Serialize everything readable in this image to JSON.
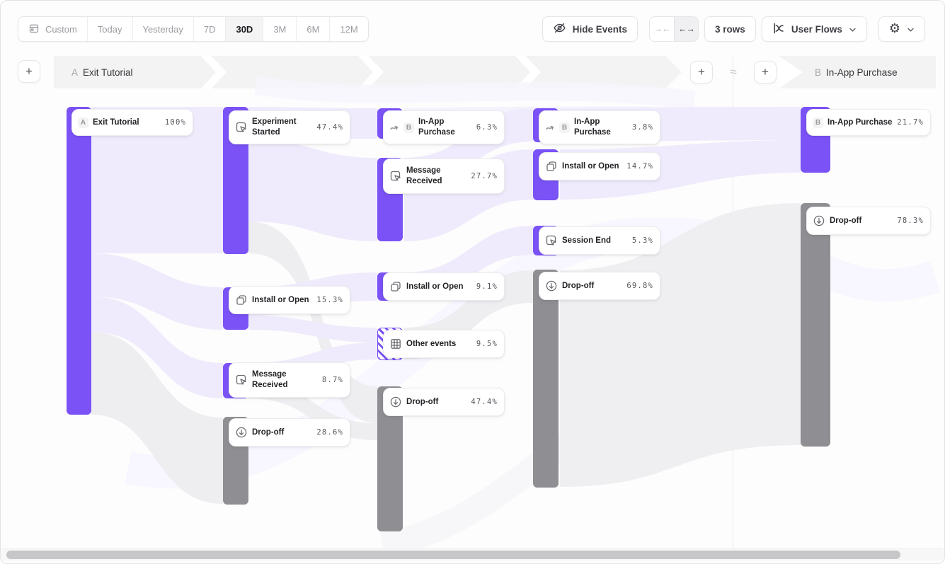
{
  "ui": {
    "plus": "+"
  },
  "colors": {
    "accent_purple": "#7A52F6",
    "ribbon_purple": "#EFEBFC",
    "node_gray": "#8F8F93",
    "ribbon_gray": "#EEEEF1",
    "band_gray": "#F3F3F4"
  },
  "toolbar": {
    "date_ranges": [
      "Custom",
      "Today",
      "Yesterday",
      "7D",
      "30D",
      "3M",
      "6M",
      "12M"
    ],
    "selected_range": "30D",
    "hide_events": "Hide Events",
    "collapse_glyph": "→←",
    "expand_glyph": "←→",
    "rows": "3 rows",
    "view": "User Flows",
    "gear_glyph": "⚙"
  },
  "sections": {
    "a": {
      "badge": "A",
      "label": "Exit Tutorial"
    },
    "b": {
      "badge": "B",
      "label": "In-App Purchase"
    },
    "connector": "≈"
  },
  "chart_data": {
    "type": "sankey",
    "description": "User flow from Exit Tutorial (section A) toward In-App Purchase (section B), 30D window",
    "nodes": [
      {
        "col": 0,
        "label": "Exit Tutorial",
        "value": "100%",
        "badge": "A",
        "icon": null,
        "kind": "purple",
        "bar": [
          93,
          150,
          35,
          435
        ],
        "card": [
          100,
          153,
          172,
          38
        ],
        "two": false
      },
      {
        "col": 1,
        "label": "Experiment Started",
        "value": "47.4%",
        "badge": null,
        "icon": "cursor-click-icon",
        "kind": "purple",
        "bar": [
          314,
          150,
          36,
          208
        ],
        "card": [
          322,
          155,
          172,
          48
        ],
        "two": true
      },
      {
        "col": 1,
        "label": "Install or Open",
        "value": "15.3%",
        "badge": null,
        "icon": "window-icon",
        "kind": "purple",
        "bar": [
          314,
          405,
          36,
          60
        ],
        "card": [
          322,
          403,
          172,
          40
        ],
        "two": false
      },
      {
        "col": 1,
        "label": "Message Received",
        "value": "8.7%",
        "badge": null,
        "icon": "cursor-click-icon",
        "kind": "purple",
        "bar": [
          314,
          512,
          36,
          50
        ],
        "card": [
          322,
          511,
          172,
          50
        ],
        "two": true
      },
      {
        "col": 1,
        "label": "Drop-off",
        "value": "28.6%",
        "badge": null,
        "icon": "arrow-down-circle-icon",
        "kind": "gray",
        "bar": [
          314,
          588,
          36,
          124
        ],
        "card": [
          322,
          590,
          172,
          40
        ],
        "two": false
      },
      {
        "col": 2,
        "label": "In-App Purchase",
        "value": "6.3%",
        "badge": "B",
        "icon": "jump-arrow-icon",
        "kind": "purple",
        "bar": [
          532,
          152,
          36,
          43
        ],
        "card": [
          540,
          155,
          172,
          48
        ],
        "two": true
      },
      {
        "col": 2,
        "label": "Message Received",
        "value": "27.7%",
        "badge": null,
        "icon": "cursor-click-icon",
        "kind": "purple",
        "bar": [
          532,
          222,
          36,
          118
        ],
        "card": [
          540,
          223,
          172,
          50
        ],
        "two": true
      },
      {
        "col": 2,
        "label": "Install or Open",
        "value": "9.1%",
        "badge": null,
        "icon": "window-icon",
        "kind": "purple",
        "bar": [
          532,
          384,
          36,
          40
        ],
        "card": [
          540,
          384,
          172,
          40
        ],
        "two": false
      },
      {
        "col": 2,
        "label": "Other events",
        "value": "9.5%",
        "badge": null,
        "icon": "grid-icon",
        "kind": "hatched",
        "bar": [
          532,
          462,
          36,
          46
        ],
        "card": [
          540,
          465,
          172,
          40
        ],
        "two": false
      },
      {
        "col": 2,
        "label": "Drop-off",
        "value": "47.4%",
        "badge": null,
        "icon": "arrow-down-circle-icon",
        "kind": "gray",
        "bar": [
          532,
          545,
          36,
          205
        ],
        "card": [
          540,
          547,
          172,
          40
        ],
        "two": false
      },
      {
        "col": 3,
        "label": "In-App Purchase",
        "value": "3.8%",
        "badge": "B",
        "icon": "jump-arrow-icon",
        "kind": "purple",
        "bar": [
          752,
          152,
          36,
          48
        ],
        "card": [
          760,
          155,
          172,
          48
        ],
        "two": true
      },
      {
        "col": 3,
        "label": "Install or Open",
        "value": "14.7%",
        "badge": null,
        "icon": "window-icon",
        "kind": "purple",
        "bar": [
          752,
          210,
          36,
          72
        ],
        "card": [
          760,
          214,
          172,
          40
        ],
        "two": false
      },
      {
        "col": 3,
        "label": "Session End",
        "value": "5.3%",
        "badge": null,
        "icon": "cursor-click-icon",
        "kind": "purple",
        "bar": [
          752,
          318,
          36,
          42
        ],
        "card": [
          760,
          319,
          172,
          40
        ],
        "two": false
      },
      {
        "col": 3,
        "label": "Drop-off",
        "value": "69.8%",
        "badge": null,
        "icon": "arrow-down-circle-icon",
        "kind": "gray",
        "bar": [
          752,
          380,
          36,
          308
        ],
        "card": [
          760,
          383,
          172,
          40
        ],
        "two": false
      },
      {
        "col": 4,
        "label": "In-App Purchase",
        "value": "21.7%",
        "badge": "B",
        "icon": null,
        "kind": "purple",
        "bar": [
          1130,
          150,
          42,
          93
        ],
        "card": [
          1138,
          153,
          176,
          38
        ],
        "two": false
      },
      {
        "col": 4,
        "label": "Drop-off",
        "value": "78.3%",
        "badge": null,
        "icon": "arrow-down-circle-icon",
        "kind": "gray",
        "bar": [
          1130,
          286,
          42,
          344
        ],
        "card": [
          1138,
          291,
          176,
          40
        ],
        "two": false
      }
    ]
  }
}
